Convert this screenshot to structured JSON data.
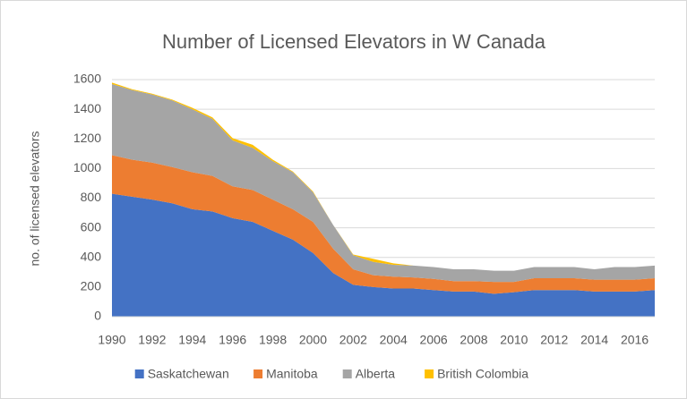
{
  "chart_data": {
    "type": "stacked_area",
    "title": "Number of Licensed Elevators in W Canada",
    "ylabel": "no. of licensed elevators",
    "x": [
      1990,
      1991,
      1992,
      1993,
      1994,
      1995,
      1996,
      1997,
      1998,
      1999,
      2000,
      2001,
      2002,
      2003,
      2004,
      2005,
      2006,
      2007,
      2008,
      2009,
      2010,
      2011,
      2012,
      2013,
      2014,
      2015,
      2016,
      2017
    ],
    "xlim": [
      1990,
      2017
    ],
    "xticks": [
      1990,
      1992,
      1994,
      1996,
      1998,
      2000,
      2002,
      2004,
      2006,
      2008,
      2010,
      2012,
      2014,
      2016
    ],
    "ylim": [
      0,
      1600
    ],
    "yticks": [
      0,
      200,
      400,
      600,
      800,
      1000,
      1200,
      1400,
      1600
    ],
    "grid": true,
    "legend": "bottom",
    "series": [
      {
        "name": "Saskatchewan",
        "color": "#4472c4",
        "values": [
          830,
          810,
          790,
          765,
          725,
          710,
          665,
          640,
          580,
          520,
          430,
          295,
          215,
          200,
          190,
          190,
          180,
          170,
          170,
          155,
          165,
          180,
          180,
          180,
          170,
          170,
          170,
          180
        ]
      },
      {
        "name": "Manitoba",
        "color": "#ed7d31",
        "values": [
          260,
          250,
          250,
          245,
          250,
          240,
          215,
          215,
          210,
          205,
          210,
          165,
          105,
          80,
          80,
          75,
          75,
          70,
          70,
          80,
          70,
          80,
          80,
          80,
          80,
          80,
          80,
          80
        ]
      },
      {
        "name": "Alberta",
        "color": "#a5a5a5",
        "values": [
          480,
          470,
          460,
          450,
          425,
          385,
          310,
          285,
          260,
          250,
          200,
          160,
          95,
          90,
          80,
          80,
          80,
          80,
          80,
          75,
          75,
          75,
          75,
          75,
          70,
          85,
          85,
          85
        ]
      },
      {
        "name": "British Colombia",
        "color": "#ffc000",
        "values": [
          10,
          5,
          5,
          5,
          10,
          10,
          15,
          20,
          10,
          5,
          5,
          0,
          5,
          20,
          10,
          0,
          0,
          0,
          0,
          0,
          0,
          0,
          0,
          0,
          0,
          0,
          0,
          0
        ]
      }
    ]
  }
}
